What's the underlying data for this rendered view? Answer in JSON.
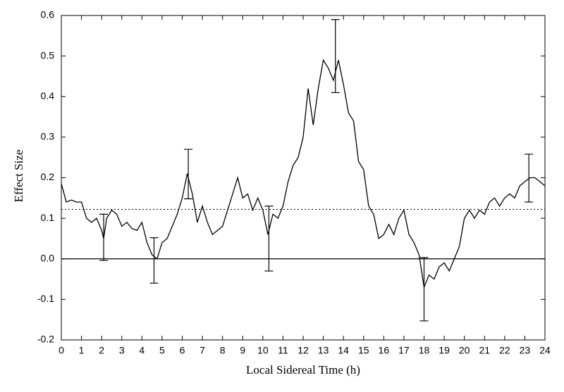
{
  "chart_data": {
    "type": "line",
    "xlabel": "Local Sidereal Time (h)",
    "ylabel": "Effect Size",
    "x": [
      0,
      0.25,
      0.5,
      0.75,
      1,
      1.25,
      1.5,
      1.75,
      2,
      2.1,
      2.25,
      2.5,
      2.75,
      3,
      3.25,
      3.5,
      3.75,
      4,
      4.25,
      4.5,
      4.75,
      5,
      5.25,
      5.5,
      5.75,
      6,
      6.25,
      6.5,
      6.75,
      7,
      7.25,
      7.5,
      7.75,
      8,
      8.25,
      8.5,
      8.75,
      9,
      9.25,
      9.5,
      9.75,
      10,
      10.25,
      10.5,
      10.75,
      11,
      11.25,
      11.5,
      11.75,
      12,
      12.25,
      12.5,
      12.75,
      13,
      13.25,
      13.5,
      13.75,
      14,
      14.25,
      14.5,
      14.75,
      15,
      15.25,
      15.5,
      15.75,
      16,
      16.25,
      16.5,
      16.75,
      17,
      17.25,
      17.5,
      17.75,
      18,
      18.25,
      18.5,
      18.75,
      19,
      19.25,
      19.5,
      19.75,
      20,
      20.25,
      20.5,
      20.75,
      21,
      21.25,
      21.5,
      21.75,
      22,
      22.25,
      22.5,
      22.75,
      23,
      23.25,
      23.5,
      23.75,
      24
    ],
    "series": [
      {
        "color": "#000000",
        "values": [
          0.185,
          0.14,
          0.145,
          0.14,
          0.14,
          0.1,
          0.09,
          0.1,
          0.07,
          0.05,
          0.1,
          0.12,
          0.11,
          0.08,
          0.09,
          0.075,
          0.07,
          0.09,
          0.04,
          0.01,
          0,
          0.04,
          0.05,
          0.08,
          0.11,
          0.15,
          0.21,
          0.16,
          0.09,
          0.13,
          0.09,
          0.06,
          0.07,
          0.08,
          0.12,
          0.16,
          0.2,
          0.15,
          0.16,
          0.12,
          0.15,
          0.12,
          0.06,
          0.11,
          0.1,
          0.13,
          0.19,
          0.23,
          0.25,
          0.3,
          0.42,
          0.33,
          0.42,
          0.49,
          0.47,
          0.44,
          0.49,
          0.43,
          0.36,
          0.34,
          0.24,
          0.22,
          0.13,
          0.11,
          0.05,
          0.06,
          0.085,
          0.06,
          0.1,
          0.12,
          0.06,
          0.04,
          0.01,
          -0.07,
          -0.04,
          -0.05,
          -0.02,
          -0.01,
          -0.03,
          0,
          0.03,
          0.1,
          0.12,
          0.1,
          0.12,
          0.11,
          0.14,
          0.15,
          0.13,
          0.15,
          0.16,
          0.15,
          0.18,
          0.19,
          0.2,
          0.2,
          0.19,
          0.18
        ]
      }
    ],
    "error_bars": {
      "x": [
        2.1,
        4.6,
        6.3,
        10.3,
        13.6,
        18,
        23.2
      ],
      "values": [
        0.053,
        -0.004,
        0.209,
        0.05,
        0.5,
        -0.075,
        0.199
      ],
      "errors": [
        0.057,
        0.056,
        0.061,
        0.08,
        0.09,
        0.078,
        0.059
      ]
    },
    "reference_lines": [
      {
        "value": 0.122,
        "style": "dotted"
      },
      {
        "value": 0,
        "style": "solid"
      }
    ],
    "xlim": [
      0,
      24
    ],
    "xticks": [
      0,
      1,
      2,
      3,
      4,
      5,
      6,
      7,
      8,
      9,
      10,
      11,
      12,
      13,
      14,
      15,
      16,
      17,
      18,
      19,
      20,
      21,
      22,
      23,
      24
    ],
    "ylim": [
      -0.2,
      0.6
    ],
    "yticks": [
      -0.2,
      -0.1,
      {
        "value": 0,
        "label": "0.0"
      },
      0.1,
      0.2,
      0.3,
      0.4,
      0.5,
      0.6
    ]
  }
}
